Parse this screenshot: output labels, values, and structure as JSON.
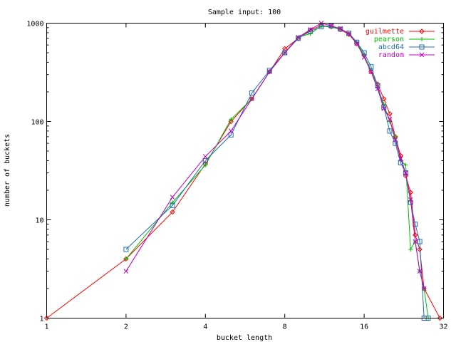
{
  "chart_data": {
    "type": "line",
    "title": "Sample input: 100",
    "xlabel": "bucket length",
    "ylabel": "number of buckets",
    "xscale": "log2",
    "yscale": "log10",
    "xlim": [
      1,
      32
    ],
    "ylim": [
      1,
      1000
    ],
    "grid": false,
    "legend_position": "top-right",
    "x_ticks": [
      {
        "value": 1,
        "label": "1"
      },
      {
        "value": 2,
        "label": "2"
      },
      {
        "value": 4,
        "label": "4"
      },
      {
        "value": 8,
        "label": "8"
      },
      {
        "value": 16,
        "label": "16"
      },
      {
        "value": 32,
        "label": "32"
      }
    ],
    "y_ticks": [
      {
        "value": 1,
        "label": "1"
      },
      {
        "value": 10,
        "label": "10"
      },
      {
        "value": 100,
        "label": "100"
      },
      {
        "value": 1000,
        "label": "1000"
      }
    ],
    "series": [
      {
        "name": "guilmette",
        "color": "#ff0000",
        "marker": "diamond",
        "points": [
          [
            1,
            1
          ],
          [
            2,
            4
          ],
          [
            3,
            12
          ],
          [
            4,
            37
          ],
          [
            5,
            100
          ],
          [
            6,
            170
          ],
          [
            7,
            320
          ],
          [
            8,
            550
          ],
          [
            9,
            700
          ],
          [
            10,
            850
          ],
          [
            11,
            950
          ],
          [
            12,
            920
          ],
          [
            13,
            860
          ],
          [
            14,
            770
          ],
          [
            15,
            620
          ],
          [
            16,
            470
          ],
          [
            17,
            320
          ],
          [
            18,
            240
          ],
          [
            19,
            170
          ],
          [
            20,
            120
          ],
          [
            21,
            70
          ],
          [
            22,
            45
          ],
          [
            23,
            28
          ],
          [
            24,
            19
          ],
          [
            25,
            7
          ],
          [
            26,
            5
          ],
          [
            27,
            2
          ],
          [
            31,
            1
          ]
        ]
      },
      {
        "name": "pearson",
        "color": "#00c000",
        "marker": "plus",
        "points": [
          [
            2,
            4
          ],
          [
            3,
            15
          ],
          [
            4,
            36
          ],
          [
            5,
            105
          ],
          [
            6,
            170
          ],
          [
            7,
            320
          ],
          [
            8,
            500
          ],
          [
            9,
            720
          ],
          [
            10,
            780
          ],
          [
            11,
            940
          ],
          [
            12,
            910
          ],
          [
            13,
            870
          ],
          [
            14,
            790
          ],
          [
            15,
            640
          ],
          [
            16,
            470
          ],
          [
            17,
            330
          ],
          [
            18,
            220
          ],
          [
            19,
            150
          ],
          [
            20,
            100
          ],
          [
            21,
            70
          ],
          [
            22,
            40
          ],
          [
            23,
            36
          ],
          [
            24,
            5
          ],
          [
            25,
            6
          ],
          [
            26,
            3
          ],
          [
            27,
            2
          ],
          [
            28,
            1
          ]
        ]
      },
      {
        "name": "abcd64",
        "color": "#1f6fb4",
        "marker": "square",
        "points": [
          [
            2,
            5
          ],
          [
            3,
            14
          ],
          [
            4,
            40
          ],
          [
            5,
            73
          ],
          [
            6,
            195
          ],
          [
            7,
            330
          ],
          [
            8,
            500
          ],
          [
            9,
            700
          ],
          [
            10,
            830
          ],
          [
            11,
            920
          ],
          [
            12,
            940
          ],
          [
            13,
            870
          ],
          [
            14,
            790
          ],
          [
            15,
            640
          ],
          [
            16,
            500
          ],
          [
            17,
            360
          ],
          [
            18,
            230
          ],
          [
            19,
            140
          ],
          [
            20,
            80
          ],
          [
            21,
            60
          ],
          [
            22,
            38
          ],
          [
            23,
            30
          ],
          [
            24,
            15
          ],
          [
            25,
            9
          ],
          [
            26,
            6
          ],
          [
            27,
            1
          ],
          [
            28,
            1
          ]
        ]
      },
      {
        "name": "random",
        "color": "#c000c0",
        "marker": "cross",
        "points": [
          [
            2,
            3
          ],
          [
            3,
            17
          ],
          [
            4,
            44
          ],
          [
            5,
            80
          ],
          [
            6,
            170
          ],
          [
            7,
            320
          ],
          [
            8,
            500
          ],
          [
            9,
            720
          ],
          [
            10,
            860
          ],
          [
            11,
            1000
          ],
          [
            12,
            940
          ],
          [
            13,
            880
          ],
          [
            14,
            780
          ],
          [
            15,
            620
          ],
          [
            16,
            450
          ],
          [
            17,
            320
          ],
          [
            18,
            215
          ],
          [
            19,
            135
          ],
          [
            20,
            105
          ],
          [
            21,
            65
          ],
          [
            22,
            42
          ],
          [
            23,
            30
          ],
          [
            24,
            16
          ],
          [
            25,
            6
          ],
          [
            26,
            3
          ],
          [
            27,
            2
          ]
        ]
      }
    ]
  }
}
